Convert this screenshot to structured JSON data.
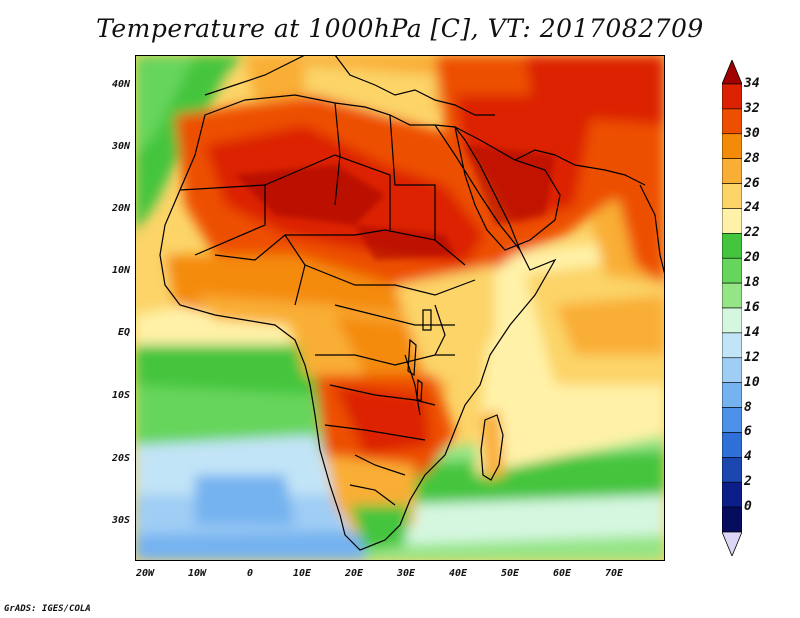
{
  "title": "Temperature at 1000hPa [C], VT: 2017082709",
  "credit": "GrADS: IGES/COLA",
  "lat_labels": [
    "40N",
    "30N",
    "20N",
    "10N",
    "EQ",
    "10S",
    "20S",
    "30S"
  ],
  "lon_labels": [
    "20W",
    "10W",
    "0",
    "10E",
    "20E",
    "30E",
    "40E",
    "50E",
    "60E",
    "70E"
  ],
  "colorbar": {
    "labels": [
      "34",
      "32",
      "30",
      "28",
      "26",
      "24",
      "22",
      "20",
      "18",
      "16",
      "14",
      "12",
      "10",
      "8",
      "6",
      "4",
      "2",
      "0"
    ],
    "colors": [
      "#a00000",
      "#dc2200",
      "#ed4f00",
      "#f48b08",
      "#f9ae35",
      "#fcd468",
      "#fff2a8",
      "#45c53d",
      "#66d55b",
      "#95e586",
      "#d5f7e0",
      "#c2e4f7",
      "#9fcdf4",
      "#75b2f0",
      "#4d92e8",
      "#2f6fd8",
      "#1a47b0",
      "#0c1e8a",
      "#060c5e",
      "#dcd6f7"
    ]
  }
}
